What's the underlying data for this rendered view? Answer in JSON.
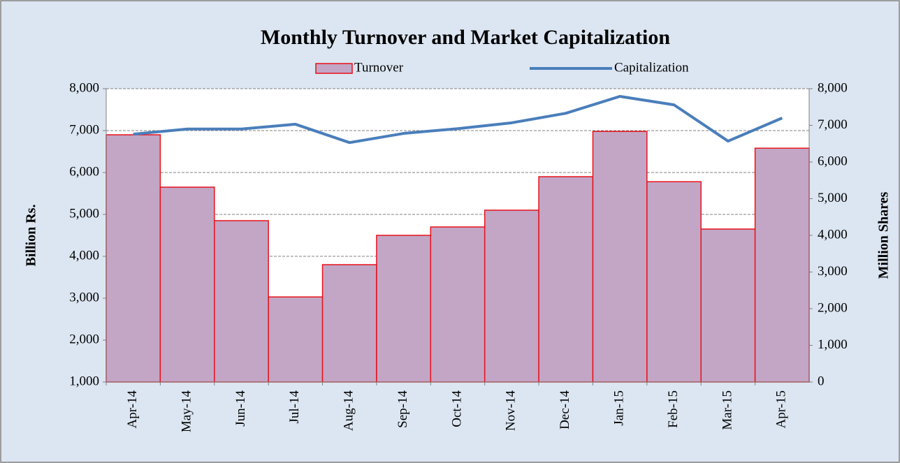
{
  "chart_data": {
    "type": "bar",
    "title": "Monthly Turnover and Market Capitalization",
    "categories": [
      "Apr-14",
      "May-14",
      "Jun-14",
      "Jul-14",
      "Aug-14",
      "Sep-14",
      "Oct-14",
      "Nov-14",
      "Dec-14",
      "Jan-15",
      "Feb-15",
      "Mar-15",
      "Apr-15"
    ],
    "series": [
      {
        "name": "Turnover",
        "type": "bar",
        "color": "#c3a6c6",
        "edge_color": "#e8111a",
        "axis": "y",
        "values": [
          6900,
          5650,
          4850,
          3030,
          3800,
          4500,
          4700,
          5100,
          5900,
          6980,
          5780,
          4650,
          6580
        ]
      },
      {
        "name": "Capitalization",
        "type": "line",
        "color": "#4a7ebb",
        "axis": "y2",
        "values": [
          6760,
          6900,
          6900,
          7030,
          6530,
          6780,
          6910,
          7070,
          7330,
          7790,
          7560,
          6570,
          7200
        ]
      }
    ],
    "y_label": "Billion Rs.",
    "y2_label": "Million Shares",
    "ylim": [
      1000,
      8000
    ],
    "yticks": [
      {
        "value": 1000,
        "label": "1,000"
      },
      {
        "value": 2000,
        "label": "2,000"
      },
      {
        "value": 3000,
        "label": "3,000"
      },
      {
        "value": 4000,
        "label": "4,000"
      },
      {
        "value": 5000,
        "label": "5,000"
      },
      {
        "value": 6000,
        "label": "6,000"
      },
      {
        "value": 7000,
        "label": "7,000"
      },
      {
        "value": 8000,
        "label": "8,000"
      }
    ],
    "y2lim": [
      0,
      8000
    ],
    "y2ticks": [
      0,
      {
        "value": 1000,
        "label": "1,000"
      },
      {
        "value": 2000,
        "label": "2,000"
      },
      {
        "value": 3000,
        "label": "3,000"
      },
      {
        "value": 4000,
        "label": "4,000"
      },
      {
        "value": 5000,
        "label": "5,000"
      },
      {
        "value": 6000,
        "label": "6,000"
      },
      {
        "value": 7000,
        "label": "7,000"
      },
      {
        "value": 8000,
        "label": "8,000"
      }
    ],
    "grid": true,
    "legend": "top"
  }
}
